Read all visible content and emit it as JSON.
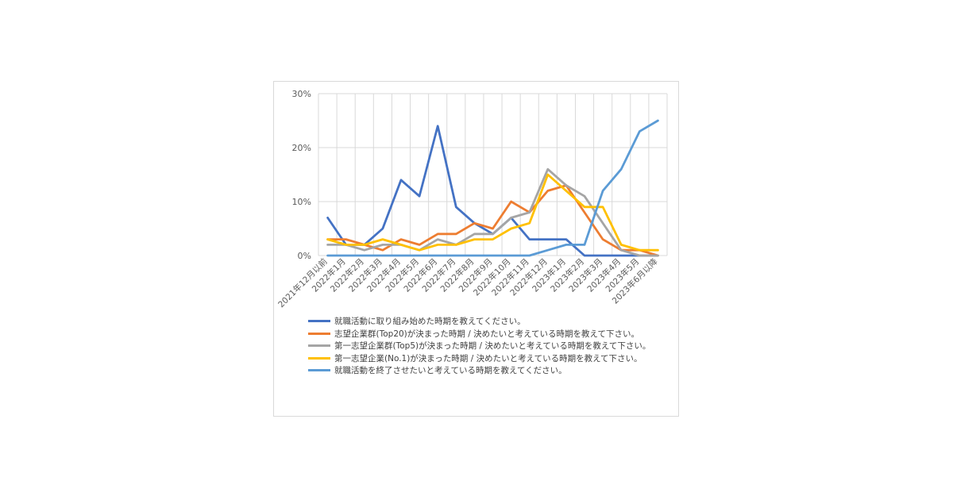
{
  "chart_data": {
    "type": "line",
    "categories": [
      "2021年12月以前",
      "2022年1月",
      "2022年2月",
      "2022年3月",
      "2022年4月",
      "2022年5月",
      "2022年6月",
      "2022年7月",
      "2022年8月",
      "2022年9月",
      "2022年10月",
      "2022年11月",
      "2022年12月",
      "2023年1月",
      "2023年2月",
      "2023年3月",
      "2023年4月",
      "2023年5月",
      "2023年6月以降"
    ],
    "ylim": [
      0,
      30
    ],
    "yticks": [
      "0%",
      "10%",
      "20%",
      "30%"
    ],
    "grid": true,
    "legend_position": "bottom",
    "series": [
      {
        "name": "就職活動に取り組み始めた時期を教えてください。",
        "color": "#4472c4",
        "values": [
          7,
          2,
          2,
          5,
          14,
          11,
          24,
          9,
          6,
          4,
          7,
          3,
          3,
          3,
          0,
          0,
          0,
          0,
          0
        ]
      },
      {
        "name": "志望企業群(Top20)が決まった時期 / 決めたいと考えている時期を教えて下さい。",
        "color": "#ed7d31",
        "values": [
          3,
          3,
          2,
          1,
          3,
          2,
          4,
          4,
          6,
          5,
          10,
          8,
          12,
          13,
          8,
          3,
          1,
          1,
          0
        ]
      },
      {
        "name": "第一志望企業群(Top5)が決まった時期 / 決めたいと考えている時期を教えて下さい。",
        "color": "#a5a5a5",
        "values": [
          2,
          2,
          1,
          2,
          2,
          1,
          3,
          2,
          4,
          4,
          7,
          8,
          16,
          13,
          11,
          6,
          1,
          0,
          0
        ]
      },
      {
        "name": "第一志望企業(No.1)が決まった時期 / 決めたいと考えている時期を教えて下さい。",
        "color": "#ffc000",
        "values": [
          3,
          2,
          2,
          3,
          2,
          1,
          2,
          2,
          3,
          3,
          5,
          6,
          15,
          12,
          9,
          9,
          2,
          1,
          1
        ]
      },
      {
        "name": "就職活動を終了させたいと考えている時期を教えてください。",
        "color": "#5b9bd5",
        "values": [
          0,
          0,
          0,
          0,
          0,
          0,
          0,
          0,
          0,
          0,
          0,
          0,
          1,
          2,
          2,
          12,
          16,
          23,
          25
        ]
      }
    ]
  }
}
